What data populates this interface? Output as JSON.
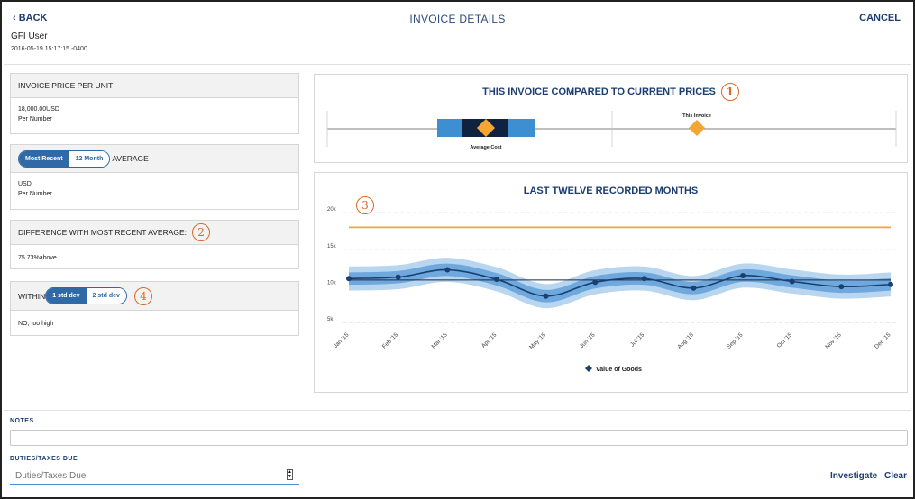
{
  "header": {
    "back_label": "‹ BACK",
    "title": "INVOICE DETAILS",
    "cancel_label": "CANCEL",
    "user": "GFI User",
    "timestamp": "2016-05-19 15:17:15 -0400"
  },
  "cards": {
    "price": {
      "title": "INVOICE PRICE PER UNIT",
      "value": "18,000.00USD",
      "unit": "Per Number"
    },
    "average": {
      "toggle_on": "Most Recent",
      "toggle_off": "12 Month",
      "suffix": "AVERAGE",
      "value": "USD",
      "unit": "Per Number"
    },
    "difference": {
      "title": "DIFFERENCE WITH MOST RECENT AVERAGE:",
      "badge": "2",
      "value": "75.73%above"
    },
    "within": {
      "prefix": "WITHIN",
      "toggle_on": "1 std dev",
      "toggle_off": "2 std dev",
      "badge": "4",
      "value": "NO, too high"
    }
  },
  "compare": {
    "title": "THIS INVOICE COMPARED TO CURRENT PRICES",
    "badge": "1",
    "average_label": "Average Cost",
    "invoice_label": "This Invoice",
    "colors": {
      "outer": "#3d8fd1",
      "inner": "#0f2340",
      "marker": "#f5a533"
    }
  },
  "trend": {
    "title": "LAST TWELVE RECORDED MONTHS",
    "badge": "3",
    "legend": "Value of Goods"
  },
  "chart_data": {
    "type": "line",
    "title": "LAST TWELVE RECORDED MONTHS",
    "categories": [
      "Jan '15",
      "Feb '15",
      "Mar '15",
      "Apr '15",
      "May '15",
      "Jun '15",
      "Jul '15",
      "Aug '15",
      "Sep '15",
      "Oct '15",
      "Nov '15",
      "Dec '15"
    ],
    "yticks": [
      {
        "v": 5000,
        "label": "5k"
      },
      {
        "v": 10000,
        "label": "10k"
      },
      {
        "v": 15000,
        "label": "15k"
      },
      {
        "v": 20000,
        "label": "20k"
      }
    ],
    "ylim": [
      5000,
      21000
    ],
    "threshold": 18000,
    "series": [
      {
        "name": "Value of Goods",
        "values": [
          11000,
          11200,
          12200,
          10900,
          8600,
          10500,
          11000,
          9700,
          11400,
          10600,
          9900,
          10200
        ]
      }
    ],
    "band_inner": 850,
    "band_outer": 1650,
    "reference_line": 10800,
    "colors": {
      "line": "#1a3f72",
      "band_inner": "#6fa8dc",
      "band_outer": "#b9d6f0",
      "threshold": "#f5a533",
      "reference": "#1a2a40"
    },
    "grid": true,
    "legend_position": "bottom"
  },
  "bottom": {
    "notes_label": "NOTES",
    "duties_label": "DUTIES/TAXES DUE",
    "duties_placeholder": "Duties/Taxes Due",
    "investigate_label": "Investigate",
    "clear_label": "Clear"
  }
}
